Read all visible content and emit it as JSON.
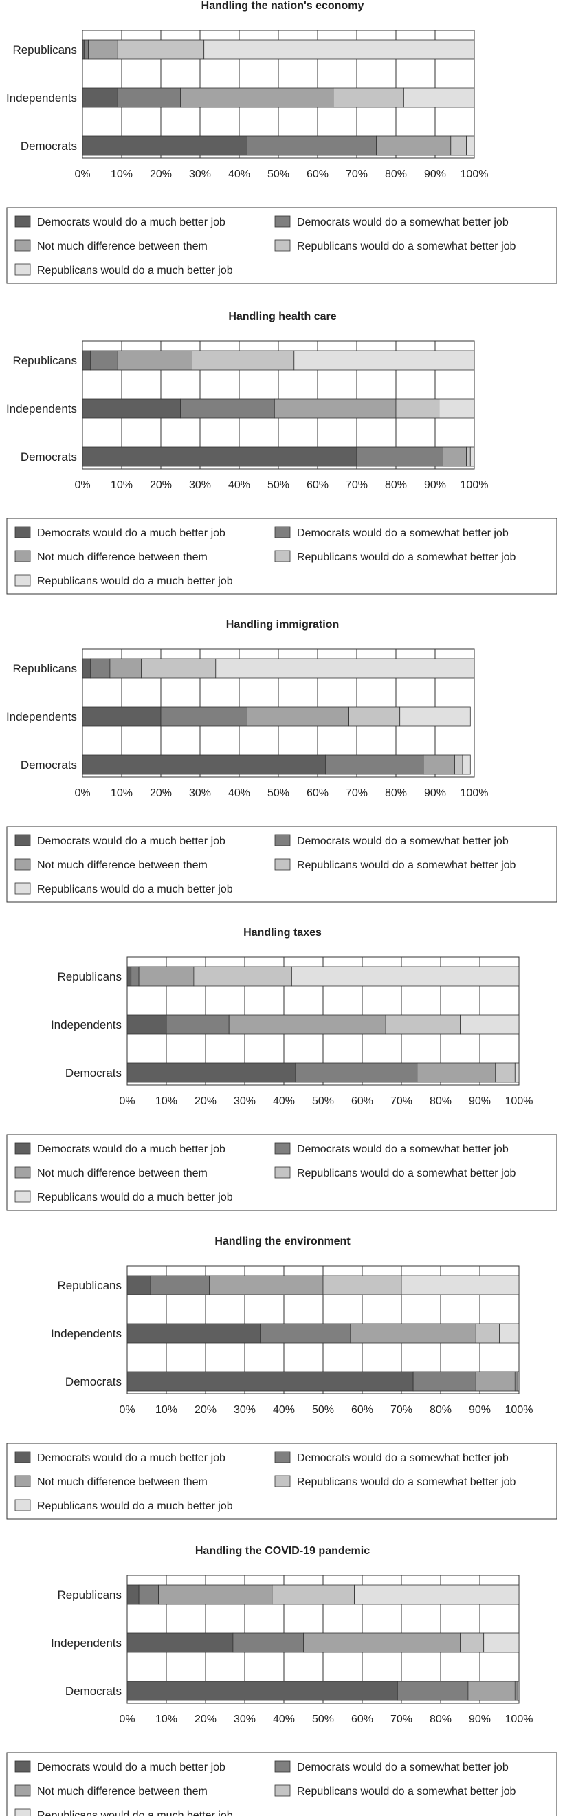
{
  "colors": {
    "dem_much": "#5f5f5f",
    "dem_somewhat": "#7f7f7f",
    "no_difference": "#a3a3a3",
    "rep_somewhat": "#c4c4c4",
    "rep_much": "#e0e0e0",
    "outline": "#333333"
  },
  "chart_data": [
    {
      "type": "bar",
      "orientation": "horizontal",
      "stacked": true,
      "title": "Handling the nation's economy",
      "categories": [
        "Republicans",
        "Independents",
        "Democrats"
      ],
      "xlim": [
        0,
        100
      ],
      "x_ticks": [
        "0%",
        "10%",
        "20%",
        "30%",
        "40%",
        "50%",
        "60%",
        "70%",
        "80%",
        "90%",
        "100%"
      ],
      "series": [
        {
          "name": "Democrats would do a much better job",
          "color_key": "dem_much",
          "values": [
            0.5,
            9,
            42
          ]
        },
        {
          "name": "Democrats would do a somewhat better job",
          "color_key": "dem_somewhat",
          "values": [
            1,
            16,
            33
          ]
        },
        {
          "name": "Not much difference between them",
          "color_key": "no_difference",
          "values": [
            7.5,
            39,
            19
          ]
        },
        {
          "name": "Republicans would do a somewhat better job",
          "color_key": "rep_somewhat",
          "values": [
            22,
            18,
            4
          ]
        },
        {
          "name": "Republicans would do a much better job",
          "color_key": "rep_much",
          "values": [
            69,
            18,
            2
          ]
        }
      ],
      "legend_position": "bottom"
    },
    {
      "type": "bar",
      "orientation": "horizontal",
      "stacked": true,
      "title": "Handling health care",
      "categories": [
        "Republicans",
        "Independents",
        "Democrats"
      ],
      "xlim": [
        0,
        100
      ],
      "x_ticks": [
        "0%",
        "10%",
        "20%",
        "30%",
        "40%",
        "50%",
        "60%",
        "70%",
        "80%",
        "90%",
        "100%"
      ],
      "series": [
        {
          "name": "Democrats would do a much better job",
          "color_key": "dem_much",
          "values": [
            2,
            25,
            70
          ]
        },
        {
          "name": "Democrats would do a somewhat better job",
          "color_key": "dem_somewhat",
          "values": [
            7,
            24,
            22
          ]
        },
        {
          "name": "Not much difference between them",
          "color_key": "no_difference",
          "values": [
            19,
            31,
            6
          ]
        },
        {
          "name": "Republicans would do a somewhat better job",
          "color_key": "rep_somewhat",
          "values": [
            26,
            11,
            1
          ]
        },
        {
          "name": "Republicans would do a much better job",
          "color_key": "rep_much",
          "values": [
            46,
            9,
            1
          ]
        }
      ],
      "legend_position": "bottom"
    },
    {
      "type": "bar",
      "orientation": "horizontal",
      "stacked": true,
      "title": "Handling immigration",
      "categories": [
        "Republicans",
        "Independents",
        "Democrats"
      ],
      "xlim": [
        0,
        100
      ],
      "x_ticks": [
        "0%",
        "10%",
        "20%",
        "30%",
        "40%",
        "50%",
        "60%",
        "70%",
        "80%",
        "90%",
        "100%"
      ],
      "series": [
        {
          "name": "Democrats would do a much better job",
          "color_key": "dem_much",
          "values": [
            2,
            20,
            62
          ]
        },
        {
          "name": "Democrats would do a somewhat better job",
          "color_key": "dem_somewhat",
          "values": [
            5,
            22,
            25
          ]
        },
        {
          "name": "Not much difference between them",
          "color_key": "no_difference",
          "values": [
            8,
            26,
            8
          ]
        },
        {
          "name": "Republicans would do a somewhat better job",
          "color_key": "rep_somewhat",
          "values": [
            19,
            13,
            2
          ]
        },
        {
          "name": "Republicans would do a much better job",
          "color_key": "rep_much",
          "values": [
            66,
            18,
            2
          ]
        }
      ],
      "legend_position": "bottom"
    },
    {
      "type": "bar",
      "orientation": "horizontal",
      "stacked": true,
      "title": "Handling taxes",
      "categories": [
        "Republicans",
        "Independents",
        "Democrats"
      ],
      "xlim": [
        0,
        100
      ],
      "x_ticks": [
        "0%",
        "10%",
        "20%",
        "30%",
        "40%",
        "50%",
        "60%",
        "70%",
        "80%",
        "90%",
        "100%"
      ],
      "series": [
        {
          "name": "Democrats would do a much better job",
          "color_key": "dem_much",
          "values": [
            1,
            10,
            43
          ]
        },
        {
          "name": "Democrats would do a somewhat better job",
          "color_key": "dem_somewhat",
          "values": [
            2,
            16,
            31
          ]
        },
        {
          "name": "Not much difference between them",
          "color_key": "no_difference",
          "values": [
            14,
            40,
            20
          ]
        },
        {
          "name": "Republicans would do a somewhat better job",
          "color_key": "rep_somewhat",
          "values": [
            25,
            19,
            5
          ]
        },
        {
          "name": "Republicans would do a much better job",
          "color_key": "rep_much",
          "values": [
            58,
            15,
            1
          ]
        }
      ],
      "legend_position": "bottom"
    },
    {
      "type": "bar",
      "orientation": "horizontal",
      "stacked": true,
      "title": "Handling the environment",
      "categories": [
        "Republicans",
        "Independents",
        "Democrats"
      ],
      "xlim": [
        0,
        100
      ],
      "x_ticks": [
        "0%",
        "10%",
        "20%",
        "30%",
        "40%",
        "50%",
        "60%",
        "70%",
        "80%",
        "90%",
        "100%"
      ],
      "series": [
        {
          "name": "Democrats would do a much better job",
          "color_key": "dem_much",
          "values": [
            6,
            34,
            73
          ]
        },
        {
          "name": "Democrats would do a somewhat better job",
          "color_key": "dem_somewhat",
          "values": [
            15,
            23,
            16
          ]
        },
        {
          "name": "Not much difference between them",
          "color_key": "no_difference",
          "values": [
            29,
            32,
            10
          ]
        },
        {
          "name": "Republicans would do a somewhat better job",
          "color_key": "rep_somewhat",
          "values": [
            20,
            6,
            0.5
          ]
        },
        {
          "name": "Republicans would do a much better job",
          "color_key": "rep_much",
          "values": [
            30,
            5,
            0.5
          ]
        }
      ],
      "legend_position": "bottom"
    },
    {
      "type": "bar",
      "orientation": "horizontal",
      "stacked": true,
      "title": "Handling the COVID-19 pandemic",
      "categories": [
        "Republicans",
        "Independents",
        "Democrats"
      ],
      "xlim": [
        0,
        100
      ],
      "x_ticks": [
        "0%",
        "10%",
        "20%",
        "30%",
        "40%",
        "50%",
        "60%",
        "70%",
        "80%",
        "90%",
        "100%"
      ],
      "series": [
        {
          "name": "Democrats would do a much better job",
          "color_key": "dem_much",
          "values": [
            3,
            27,
            69
          ]
        },
        {
          "name": "Democrats would do a somewhat better job",
          "color_key": "dem_somewhat",
          "values": [
            5,
            18,
            18
          ]
        },
        {
          "name": "Not much difference between them",
          "color_key": "no_difference",
          "values": [
            29,
            40,
            12
          ]
        },
        {
          "name": "Republicans would do a somewhat better job",
          "color_key": "rep_somewhat",
          "values": [
            21,
            6,
            0.5
          ]
        },
        {
          "name": "Republicans would do a much better job",
          "color_key": "rep_much",
          "values": [
            42,
            9,
            0.5
          ]
        }
      ],
      "legend_position": "bottom"
    }
  ]
}
